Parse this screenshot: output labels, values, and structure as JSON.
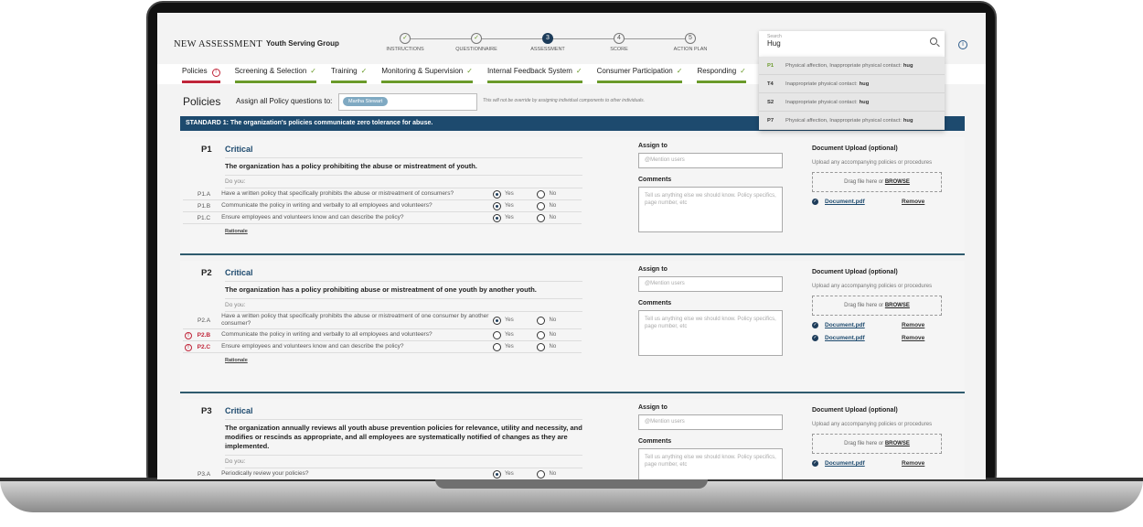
{
  "header": {
    "brand": "NEW ASSESSMENT",
    "org": "Youth Serving Group"
  },
  "steps": [
    {
      "num": "✓",
      "label": "INSTRUCTIONS",
      "state": "done"
    },
    {
      "num": "✓",
      "label": "QUESTIONNAIRE",
      "state": "done"
    },
    {
      "num": "3",
      "label": "ASSESSMENT",
      "state": "current"
    },
    {
      "num": "4",
      "label": "SCORE",
      "state": "todo"
    },
    {
      "num": "5",
      "label": "ACTION PLAN",
      "state": "todo"
    }
  ],
  "tabs": [
    {
      "label": "Policies",
      "status": "error",
      "badge": "!"
    },
    {
      "label": "Screening & Selection",
      "check": "✓"
    },
    {
      "label": "Training",
      "check": "✓"
    },
    {
      "label": "Monitoring & Supervision",
      "check": "✓"
    },
    {
      "label": "Internal Feedback System",
      "check": "✓"
    },
    {
      "label": "Consumer Participation",
      "check": "✓"
    },
    {
      "label": "Responding",
      "check": "✓"
    }
  ],
  "page": {
    "title": "Policies",
    "assign_label": "Assign all Policy questions to:",
    "assignee": "Martha Stewart",
    "note": "This will not be override by assigning individual components to other individuals."
  },
  "standard": "STANDARD 1: The organization's policies communicate zero tolerance for abuse.",
  "common": {
    "do_you": "Do you:",
    "rationale": "Rationale",
    "assign_to": "Assign to",
    "mention_placeholder": "@Mention users",
    "comments": "Comments",
    "comments_placeholder": "Tell us anything else we should know. Policy specifics, page number, etc",
    "doc_upload": "Document Upload (optional)",
    "doc_sub": "Upload any accompanying policies or procedures",
    "drag": "Drag file here or ",
    "browse": "BROWSE",
    "remove": "Remove",
    "yes": "Yes",
    "no": "No"
  },
  "sections": [
    {
      "id": "P1",
      "level": "Critical",
      "statement": "The organization has a policy prohibiting the abuse or mistreatment of youth.",
      "questions": [
        {
          "id": "P1.A",
          "text": "Have a written policy that specifically prohibits the abuse or mistreatment of consumers?",
          "answer": "yes"
        },
        {
          "id": "P1.B",
          "text": "Communicate the policy in writing and verbally to all employees and volunteers?",
          "answer": "yes"
        },
        {
          "id": "P1.C",
          "text": "Ensure employees and volunteers know and can describe the policy?",
          "answer": "yes"
        }
      ],
      "documents": [
        "Document.pdf"
      ]
    },
    {
      "id": "P2",
      "level": "Critical",
      "statement": "The organization has a policy prohibiting abuse or mistreatment of one youth by another youth.",
      "questions": [
        {
          "id": "P2.A",
          "text": "Have a written policy that specifically prohibits the abuse or mistreatment of one consumer by another consumer?",
          "answer": "yes"
        },
        {
          "id": "P2.B",
          "text": "Communicate the policy in writing and verbally to all employees and volunteers?",
          "answer": null,
          "error": true
        },
        {
          "id": "P2.C",
          "text": "Ensure employees and volunteers know and can describe the policy?",
          "answer": null,
          "error": true
        }
      ],
      "documents": [
        "Document.pdf",
        "Document.pdf"
      ]
    },
    {
      "id": "P3",
      "level": "Critical",
      "statement": "The organization annually reviews all youth abuse prevention policies for relevance, utility and necessity, and modifies or rescinds as appropriate, and all employees are systematically notified of changes as they are implemented.",
      "questions": [
        {
          "id": "P3.A",
          "text": "Periodically review your policies?",
          "answer": "yes"
        }
      ],
      "documents": [
        "Document.pdf"
      ]
    }
  ],
  "search": {
    "label": "Search",
    "value": "Hug",
    "results": [
      {
        "key": "P1",
        "text": "Physical affection, Inappropriate physical contact:",
        "match": "hug"
      },
      {
        "key": "T4",
        "text": "Inappropriate physical contact:",
        "match": "hug"
      },
      {
        "key": "S2",
        "text": "Inappropriate physical contact:",
        "match": "hug"
      },
      {
        "key": "P7",
        "text": "Physical affection, Inappropriate physical contact:",
        "match": "hug"
      }
    ]
  }
}
